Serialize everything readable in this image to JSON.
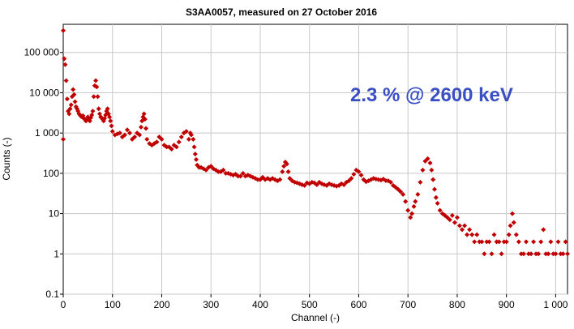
{
  "chart_data": {
    "type": "scatter",
    "title": "S3AA0057, measured on 27 October 2016",
    "xlabel": "Channel (-)",
    "ylabel": "Counts (-)",
    "xlim": [
      0,
      1024
    ],
    "ylim": [
      0.1,
      500000
    ],
    "yscale": "log",
    "grid": true,
    "x_ticks": [
      0,
      100,
      200,
      300,
      400,
      500,
      600,
      700,
      800,
      900,
      1000
    ],
    "x_tick_labels": [
      "0",
      "100",
      "200",
      "300",
      "400",
      "500",
      "600",
      "700",
      "800",
      "900",
      "1 000"
    ],
    "y_ticks": [
      0.1,
      1,
      10,
      100,
      1000,
      10000,
      100000
    ],
    "y_tick_labels": [
      "0.1",
      "1",
      "10",
      "100",
      "1 000",
      "10 000",
      "100 000"
    ],
    "annotation": {
      "text": "2.3 % @ 2600 keV",
      "color": "#3b4fc4"
    },
    "series": [
      {
        "marker": "diamond",
        "color": "#c00000",
        "points": [
          [
            0,
            350000
          ],
          [
            0,
            700
          ],
          [
            2,
            70000
          ],
          [
            4,
            50000
          ],
          [
            6,
            20000
          ],
          [
            8,
            7000
          ],
          [
            10,
            3500
          ],
          [
            12,
            3000
          ],
          [
            14,
            4000
          ],
          [
            16,
            5000
          ],
          [
            18,
            8000
          ],
          [
            20,
            12000
          ],
          [
            22,
            9000
          ],
          [
            24,
            6000
          ],
          [
            26,
            4500
          ],
          [
            28,
            4000
          ],
          [
            30,
            3500
          ],
          [
            32,
            3000
          ],
          [
            34,
            2800
          ],
          [
            36,
            2600
          ],
          [
            38,
            2500
          ],
          [
            40,
            2700
          ],
          [
            42,
            2300
          ],
          [
            44,
            2200
          ],
          [
            46,
            2000
          ],
          [
            48,
            2100
          ],
          [
            50,
            2500
          ],
          [
            52,
            2300
          ],
          [
            54,
            2000
          ],
          [
            56,
            2400
          ],
          [
            58,
            2800
          ],
          [
            60,
            3500
          ],
          [
            62,
            8000
          ],
          [
            64,
            15000
          ],
          [
            66,
            20000
          ],
          [
            68,
            14000
          ],
          [
            70,
            8000
          ],
          [
            72,
            4000
          ],
          [
            74,
            3000
          ],
          [
            76,
            2500
          ],
          [
            78,
            2400
          ],
          [
            80,
            2200
          ],
          [
            82,
            2000
          ],
          [
            84,
            2300
          ],
          [
            86,
            2800
          ],
          [
            88,
            3500
          ],
          [
            90,
            4000
          ],
          [
            92,
            3000
          ],
          [
            94,
            2500
          ],
          [
            96,
            2000
          ],
          [
            98,
            1500
          ],
          [
            100,
            1100
          ],
          [
            105,
            900
          ],
          [
            110,
            950
          ],
          [
            115,
            1000
          ],
          [
            120,
            800
          ],
          [
            125,
            900
          ],
          [
            130,
            1200
          ],
          [
            135,
            1000
          ],
          [
            140,
            700
          ],
          [
            145,
            800
          ],
          [
            150,
            1000
          ],
          [
            155,
            900
          ],
          [
            158,
            1400
          ],
          [
            160,
            2000
          ],
          [
            162,
            2500
          ],
          [
            164,
            3000
          ],
          [
            166,
            2200
          ],
          [
            168,
            1300
          ],
          [
            170,
            700
          ],
          [
            175,
            550
          ],
          [
            180,
            500
          ],
          [
            185,
            550
          ],
          [
            190,
            600
          ],
          [
            195,
            800
          ],
          [
            200,
            700
          ],
          [
            205,
            500
          ],
          [
            210,
            450
          ],
          [
            215,
            450
          ],
          [
            220,
            400
          ],
          [
            225,
            500
          ],
          [
            230,
            450
          ],
          [
            235,
            600
          ],
          [
            240,
            800
          ],
          [
            245,
            1000
          ],
          [
            250,
            1100
          ],
          [
            255,
            700
          ],
          [
            258,
            1000
          ],
          [
            260,
            900
          ],
          [
            264,
            700
          ],
          [
            266,
            450
          ],
          [
            268,
            300
          ],
          [
            270,
            220
          ],
          [
            272,
            160
          ],
          [
            276,
            140
          ],
          [
            280,
            140
          ],
          [
            285,
            130
          ],
          [
            290,
            120
          ],
          [
            295,
            140
          ],
          [
            300,
            150
          ],
          [
            305,
            130
          ],
          [
            310,
            120
          ],
          [
            315,
            110
          ],
          [
            320,
            110
          ],
          [
            325,
            120
          ],
          [
            330,
            100
          ],
          [
            335,
            100
          ],
          [
            340,
            95
          ],
          [
            345,
            90
          ],
          [
            350,
            95
          ],
          [
            355,
            85
          ],
          [
            360,
            85
          ],
          [
            365,
            100
          ],
          [
            370,
            85
          ],
          [
            375,
            90
          ],
          [
            380,
            85
          ],
          [
            385,
            80
          ],
          [
            390,
            75
          ],
          [
            395,
            70
          ],
          [
            400,
            70
          ],
          [
            405,
            80
          ],
          [
            410,
            70
          ],
          [
            415,
            75
          ],
          [
            420,
            70
          ],
          [
            425,
            75
          ],
          [
            430,
            70
          ],
          [
            435,
            65
          ],
          [
            440,
            70
          ],
          [
            445,
            110
          ],
          [
            448,
            150
          ],
          [
            451,
            190
          ],
          [
            454,
            170
          ],
          [
            457,
            110
          ],
          [
            460,
            75
          ],
          [
            465,
            65
          ],
          [
            470,
            60
          ],
          [
            475,
            58
          ],
          [
            480,
            55
          ],
          [
            485,
            52
          ],
          [
            490,
            50
          ],
          [
            495,
            58
          ],
          [
            500,
            55
          ],
          [
            505,
            60
          ],
          [
            510,
            58
          ],
          [
            515,
            52
          ],
          [
            520,
            60
          ],
          [
            525,
            55
          ],
          [
            530,
            52
          ],
          [
            535,
            50
          ],
          [
            540,
            55
          ],
          [
            545,
            52
          ],
          [
            550,
            50
          ],
          [
            555,
            48
          ],
          [
            560,
            50
          ],
          [
            565,
            55
          ],
          [
            570,
            52
          ],
          [
            575,
            60
          ],
          [
            580,
            65
          ],
          [
            585,
            75
          ],
          [
            590,
            95
          ],
          [
            595,
            120
          ],
          [
            600,
            110
          ],
          [
            605,
            90
          ],
          [
            610,
            70
          ],
          [
            615,
            62
          ],
          [
            620,
            65
          ],
          [
            625,
            70
          ],
          [
            630,
            75
          ],
          [
            635,
            72
          ],
          [
            640,
            70
          ],
          [
            645,
            68
          ],
          [
            650,
            72
          ],
          [
            655,
            66
          ],
          [
            660,
            65
          ],
          [
            665,
            60
          ],
          [
            670,
            50
          ],
          [
            675,
            45
          ],
          [
            680,
            40
          ],
          [
            685,
            35
          ],
          [
            690,
            30
          ],
          [
            695,
            20
          ],
          [
            700,
            12
          ],
          [
            705,
            8
          ],
          [
            708,
            10
          ],
          [
            712,
            15
          ],
          [
            715,
            20
          ],
          [
            720,
            30
          ],
          [
            725,
            60
          ],
          [
            730,
            120
          ],
          [
            735,
            200
          ],
          [
            740,
            230
          ],
          [
            745,
            180
          ],
          [
            748,
            120
          ],
          [
            751,
            70
          ],
          [
            754,
            40
          ],
          [
            757,
            25
          ],
          [
            760,
            18
          ],
          [
            765,
            12
          ],
          [
            770,
            10
          ],
          [
            775,
            9
          ],
          [
            780,
            8
          ],
          [
            785,
            7
          ],
          [
            790,
            9
          ],
          [
            795,
            6
          ],
          [
            800,
            8
          ],
          [
            805,
            5
          ],
          [
            810,
            4
          ],
          [
            815,
            5
          ],
          [
            820,
            3
          ],
          [
            825,
            4
          ],
          [
            830,
            3
          ],
          [
            835,
            2
          ],
          [
            840,
            3
          ],
          [
            845,
            2
          ],
          [
            850,
            2
          ],
          [
            855,
            1
          ],
          [
            860,
            2
          ],
          [
            865,
            2
          ],
          [
            870,
            1
          ],
          [
            875,
            3
          ],
          [
            880,
            2
          ],
          [
            885,
            2
          ],
          [
            890,
            1
          ],
          [
            895,
            2
          ],
          [
            900,
            2
          ],
          [
            905,
            3
          ],
          [
            908,
            5
          ],
          [
            912,
            10
          ],
          [
            915,
            6
          ],
          [
            920,
            3
          ],
          [
            925,
            2
          ],
          [
            930,
            1
          ],
          [
            935,
            1
          ],
          [
            940,
            2
          ],
          [
            945,
            1
          ],
          [
            950,
            1
          ],
          [
            955,
            2
          ],
          [
            960,
            1
          ],
          [
            965,
            1
          ],
          [
            970,
            2
          ],
          [
            975,
            4
          ],
          [
            980,
            1
          ],
          [
            985,
            1
          ],
          [
            990,
            2
          ],
          [
            995,
            1
          ],
          [
            1000,
            1
          ],
          [
            1005,
            2
          ],
          [
            1010,
            1
          ],
          [
            1015,
            1
          ],
          [
            1020,
            2
          ],
          [
            1024,
            1
          ]
        ]
      }
    ]
  }
}
